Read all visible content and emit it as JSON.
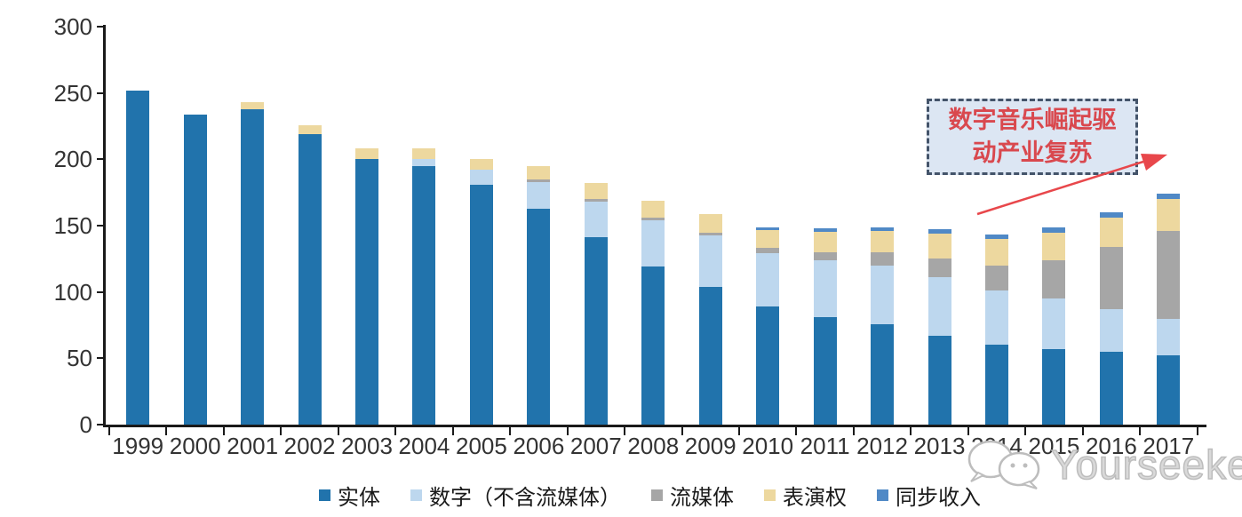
{
  "chart_data": {
    "type": "bar",
    "stacked": true,
    "title": "",
    "categories": [
      "1999",
      "2000",
      "2001",
      "2002",
      "2003",
      "2004",
      "2005",
      "2006",
      "2007",
      "2008",
      "2009",
      "2010",
      "2011",
      "2012",
      "2013",
      "2014",
      "2015",
      "2016",
      "2017"
    ],
    "series": [
      {
        "name": "实体",
        "color": "#2173ac",
        "values": [
          252,
          234,
          238,
          219,
          200,
          195,
          181,
          163,
          141,
          119,
          104,
          89,
          81,
          76,
          67,
          60,
          57,
          55,
          52
        ]
      },
      {
        "name": "数字（不含流媒体）",
        "color": "#bdd7ee",
        "values": [
          0,
          0,
          0,
          0,
          0,
          5,
          11,
          20,
          27,
          35,
          39,
          40,
          43,
          44,
          44,
          41,
          38,
          32,
          28
        ]
      },
      {
        "name": "流媒体",
        "color": "#a6a6a6",
        "values": [
          0,
          0,
          0,
          0,
          0,
          0,
          0,
          2,
          2,
          2,
          2,
          4,
          6,
          10,
          14,
          19,
          29,
          47,
          66
        ]
      },
      {
        "name": "表演权",
        "color": "#edd89f",
        "values": [
          0,
          0,
          5,
          7,
          8,
          8,
          8,
          10,
          12,
          13,
          14,
          14,
          15,
          16,
          19,
          20,
          21,
          22,
          24
        ]
      },
      {
        "name": "同步收入",
        "color": "#5089c6",
        "values": [
          0,
          0,
          0,
          0,
          0,
          0,
          0,
          0,
          0,
          0,
          0,
          2,
          3,
          3,
          3,
          3,
          4,
          4,
          4
        ]
      }
    ],
    "xlabel": "",
    "ylabel": "",
    "ylim": [
      0,
      300
    ],
    "yticks": [
      0,
      50,
      100,
      150,
      200,
      250,
      300
    ],
    "grid": false,
    "legend_position": "bottom"
  },
  "annotation": {
    "line1": "数字音乐崛起驱",
    "line2": "动产业复苏",
    "text_color": "#d9484e",
    "box_fill": "#dce6f3",
    "border_color": "#44546a",
    "arrow_color": "#e8474b"
  },
  "watermark": {
    "text": "Yourseeker",
    "logo": "wechat-icon",
    "color": "#c9c9c9"
  }
}
